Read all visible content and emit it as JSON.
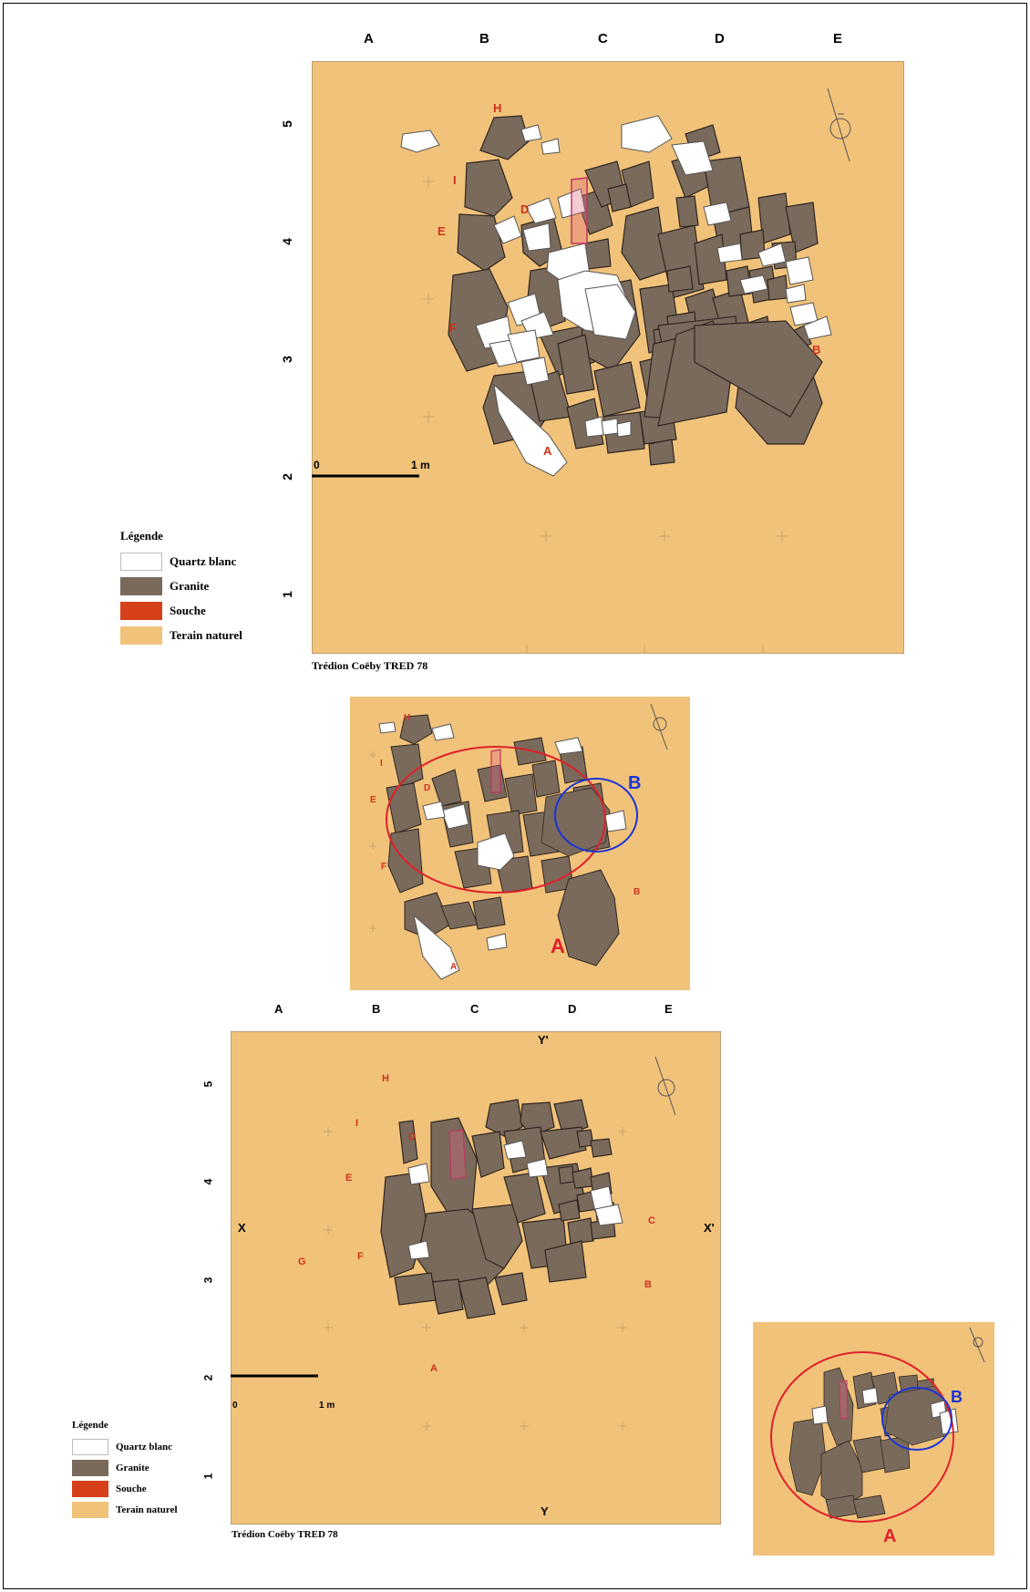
{
  "columns": [
    "A",
    "B",
    "C",
    "D",
    "E"
  ],
  "rows_top": [
    "5",
    "4",
    "3",
    "2",
    "1"
  ],
  "rows_bottom": [
    "5",
    "4",
    "3",
    "2",
    "1"
  ],
  "scale": {
    "zero": "0",
    "one": "1 m"
  },
  "legend": {
    "title": "Légende",
    "items": [
      {
        "label": "Quartz blanc",
        "color": "#ffffff"
      },
      {
        "label": "Granite",
        "color": "#7a6a5c"
      },
      {
        "label": "Souche",
        "color": "#d6401a"
      },
      {
        "label": "Terain naturel",
        "color": "#f1c27a"
      }
    ]
  },
  "caption": "Trédion Coëby TRED 78",
  "stone_letters_top": [
    "H",
    "I",
    "D",
    "E",
    "F",
    "B",
    "A"
  ],
  "stone_letters_bottom": [
    "H",
    "I",
    "D",
    "E",
    "G",
    "F",
    "C",
    "B",
    "A"
  ],
  "section_marks": {
    "x": "X",
    "x_prime": "X'",
    "y": "Y",
    "y_prime": "Y'"
  },
  "zones": {
    "a": "A",
    "b": "B"
  },
  "colors": {
    "ground": "#f1c27a",
    "granite": "#7a6a5c",
    "quartz": "#ffffff",
    "souche": "#d6401a",
    "zone_a": "#e0202a",
    "zone_b": "#1a35d6"
  }
}
